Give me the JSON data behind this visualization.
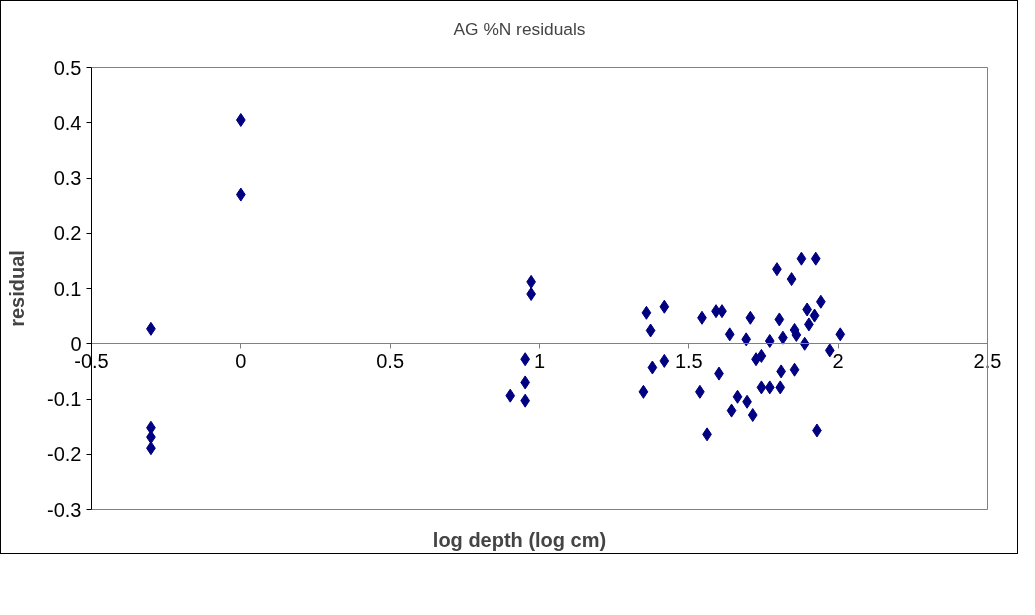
{
  "chart_data": {
    "type": "scatter",
    "title": "AG %N residuals",
    "xlabel": "log depth (log cm)",
    "ylabel": "residual",
    "x": [
      -0.301,
      -0.301,
      -0.301,
      -0.301,
      0,
      0,
      0.972,
      0.972,
      0.952,
      0.952,
      0.902,
      0.952,
      1.358,
      1.418,
      1.372,
      1.378,
      1.418,
      1.348,
      1.544,
      1.591,
      1.611,
      1.601,
      1.537,
      1.561,
      1.637,
      1.706,
      1.692,
      1.663,
      1.695,
      1.643,
      1.714,
      1.725,
      1.743,
      1.743,
      1.771,
      1.806,
      1.771,
      1.795,
      1.803,
      1.815,
      1.809,
      1.844,
      1.854,
      1.86,
      1.854,
      1.877,
      1.925,
      1.888,
      1.896,
      1.902,
      1.921,
      1.942,
      1.972,
      2.007,
      1.929
    ],
    "series": [
      {
        "color": "#000080",
        "values": [
          0.027,
          -0.152,
          -0.169,
          -0.189,
          0.405,
          0.27,
          0.112,
          0.09,
          -0.028,
          -0.07,
          -0.094,
          -0.103,
          0.056,
          0.067,
          0.024,
          -0.043,
          -0.031,
          -0.087,
          0.047,
          0.059,
          0.059,
          -0.054,
          -0.087,
          -0.164,
          0.017,
          0.047,
          0.008,
          -0.096,
          -0.105,
          -0.121,
          -0.129,
          -0.028,
          -0.022,
          -0.079,
          -0.079,
          -0.079,
          0.005,
          0.135,
          0.044,
          0.011,
          -0.05,
          0.117,
          0.025,
          0.016,
          -0.047,
          0.154,
          0.154,
          0.0,
          0.062,
          0.035,
          0.051,
          0.076,
          -0.012,
          0.017,
          -0.157
        ]
      }
    ],
    "xlim": [
      -0.5,
      2.5
    ],
    "xticks": [
      -0.5,
      0,
      0.5,
      1,
      1.5,
      2,
      2.5
    ],
    "ylim": [
      -0.3,
      0.5
    ],
    "yticks": [
      -0.3,
      -0.2,
      -0.1,
      0,
      0.1,
      0.2,
      0.3,
      0.4,
      0.5
    ],
    "marker": "diamond",
    "grid": false
  }
}
